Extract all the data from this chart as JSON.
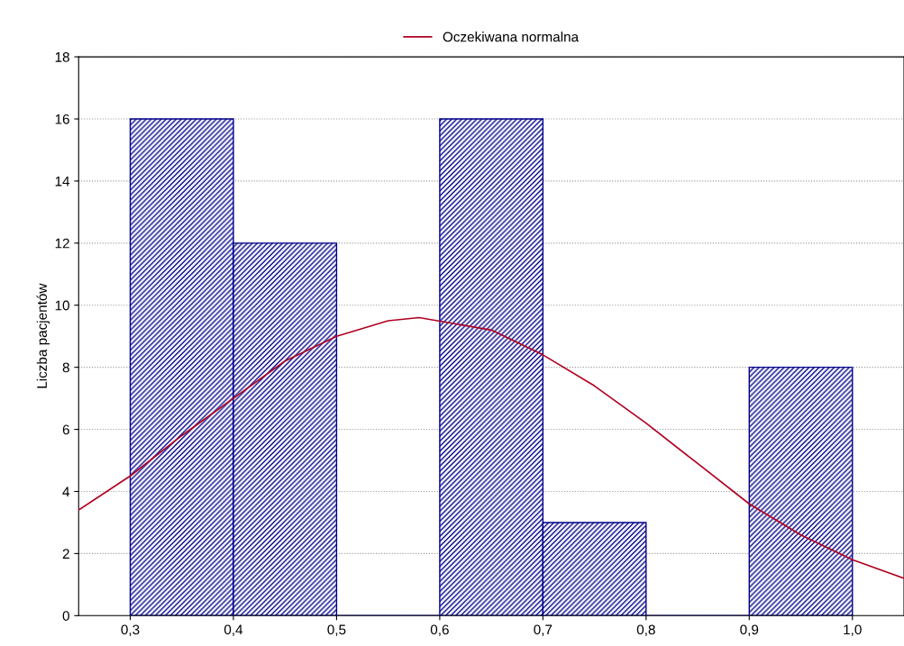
{
  "chart_data": {
    "type": "histogram",
    "ylabel": "Liczba pacjentów",
    "bins": [
      0.3,
      0.4,
      0.5,
      0.6,
      0.7,
      0.8,
      0.9,
      1.0
    ],
    "values": [
      16,
      12,
      0,
      16,
      3,
      0,
      8
    ],
    "color": "#00008b",
    "series": [
      {
        "type": "line",
        "name": "Oczekiwana normalna",
        "color": "#b00020",
        "x": [
          0.25,
          0.3,
          0.35,
          0.4,
          0.45,
          0.5,
          0.55,
          0.58,
          0.65,
          0.7,
          0.75,
          0.8,
          0.85,
          0.9,
          0.95,
          1.0,
          1.05
        ],
        "values": [
          3.4,
          4.5,
          5.8,
          7.0,
          8.2,
          9.0,
          9.5,
          9.6,
          9.2,
          8.4,
          7.4,
          6.2,
          4.9,
          3.6,
          2.6,
          1.8,
          1.2
        ]
      }
    ],
    "xlim": [
      0.25,
      1.05
    ],
    "xticks": [
      {
        "value": 0.3,
        "label": "0,3"
      },
      {
        "value": 0.4,
        "label": "0,4"
      },
      {
        "value": 0.5,
        "label": "0,5"
      },
      {
        "value": 0.6,
        "label": "0,6"
      },
      {
        "value": 0.7,
        "label": "0,7"
      },
      {
        "value": 0.8,
        "label": "0,8"
      },
      {
        "value": 0.9,
        "label": "0,9"
      },
      {
        "value": 1.0,
        "label": "1,0"
      }
    ],
    "ylim": [
      0,
      18
    ],
    "yticks": [
      0,
      2,
      4,
      6,
      8,
      10,
      12,
      14,
      16,
      18
    ],
    "grid": "y",
    "legend": "top",
    "marker": "none",
    "line_style": "solid"
  }
}
